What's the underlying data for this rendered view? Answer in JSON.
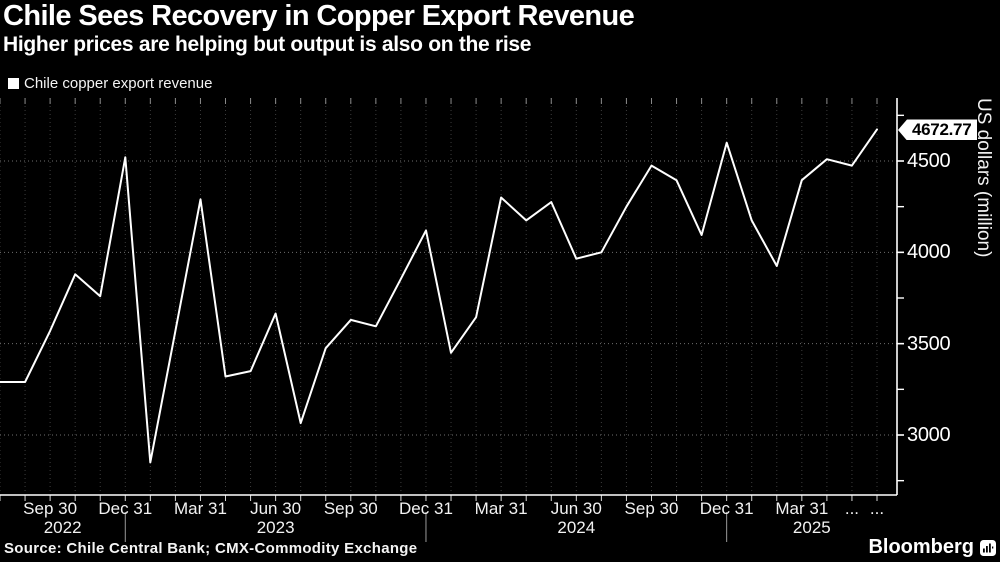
{
  "header": {
    "title": "Chile Sees Recovery in Copper Export Revenue",
    "subtitle": "Higher prices are helping but output is also on the rise"
  },
  "legend": {
    "label": "Chile copper export revenue",
    "marker_color": "#ffffff"
  },
  "chart_data": {
    "type": "line",
    "title": "Chile Sees Recovery in Copper Export Revenue",
    "subtitle": "Higher prices are helping but output is also on the rise",
    "xlabel": "",
    "ylabel": "US dollars (million)",
    "grid": true,
    "legend_position": "top-left",
    "background_color": "#000000",
    "line_color": "#ffffff",
    "ylim": [
      2650,
      4850
    ],
    "x": [
      "Jul 2022",
      "Aug 2022",
      "Sep 2022",
      "Oct 2022",
      "Nov 2022",
      "Dec 2022",
      "Jan 2023",
      "Feb 2023",
      "Mar 2023",
      "Apr 2023",
      "May 2023",
      "Jun 2023",
      "Jul 2023",
      "Aug 2023",
      "Sep 2023",
      "Oct 2023",
      "Nov 2023",
      "Dec 2023",
      "Jan 2024",
      "Feb 2024",
      "Mar 2024",
      "Apr 2024",
      "May 2024",
      "Jun 2024",
      "Jul 2024",
      "Aug 2024",
      "Sep 2024",
      "Oct 2024",
      "Nov 2024",
      "Dec 2024",
      "Jan 2025",
      "Feb 2025",
      "Mar 2025",
      "Apr 2025",
      "May 2025",
      "Jun 2025"
    ],
    "series": [
      {
        "name": "Chile copper export revenue",
        "color": "#ffffff",
        "values": [
          3290,
          3290,
          3570,
          3880,
          3760,
          4520,
          2850,
          3570,
          4290,
          3320,
          3350,
          3665,
          3065,
          3475,
          3630,
          3595,
          3855,
          4120,
          3450,
          3645,
          4300,
          4175,
          4275,
          3965,
          4000,
          4250,
          4475,
          4395,
          4095,
          4600,
          4175,
          3925,
          4395,
          4510,
          4475,
          4672.77
        ]
      }
    ],
    "y_axis": {
      "major_ticks": [
        {
          "value": 4500,
          "label": "4500"
        },
        {
          "value": 4000,
          "label": "4000"
        },
        {
          "value": 3500,
          "label": "3500"
        },
        {
          "value": 3000,
          "label": "3000"
        }
      ],
      "minor_tick_values": [
        4750,
        4250,
        3750,
        3250,
        2750
      ]
    },
    "x_axis": {
      "ticks": [
        {
          "index": 2,
          "label": "Sep 30"
        },
        {
          "index": 5,
          "label": "Dec 31"
        },
        {
          "index": 8,
          "label": "Mar 31"
        },
        {
          "index": 11,
          "label": "Jun 30"
        },
        {
          "index": 14,
          "label": "Sep 30"
        },
        {
          "index": 17,
          "label": "Dec 31"
        },
        {
          "index": 20,
          "label": "Mar 31"
        },
        {
          "index": 23,
          "label": "Jun 30"
        },
        {
          "index": 26,
          "label": "Sep 30"
        },
        {
          "index": 29,
          "label": "Dec 31"
        },
        {
          "index": 32,
          "label": "Mar 31"
        },
        {
          "index": 34,
          "label": "..."
        },
        {
          "index": 35,
          "label": "..."
        }
      ],
      "year_separator_indices": [
        5,
        17,
        29
      ],
      "year_labels": [
        "2022",
        "2023",
        "2024",
        "2025"
      ]
    },
    "last_value_label": "4672.77"
  },
  "footer": {
    "source": "Source: Chile Central Bank; CMX-Commodity Exchange",
    "brand": "Bloomberg"
  }
}
